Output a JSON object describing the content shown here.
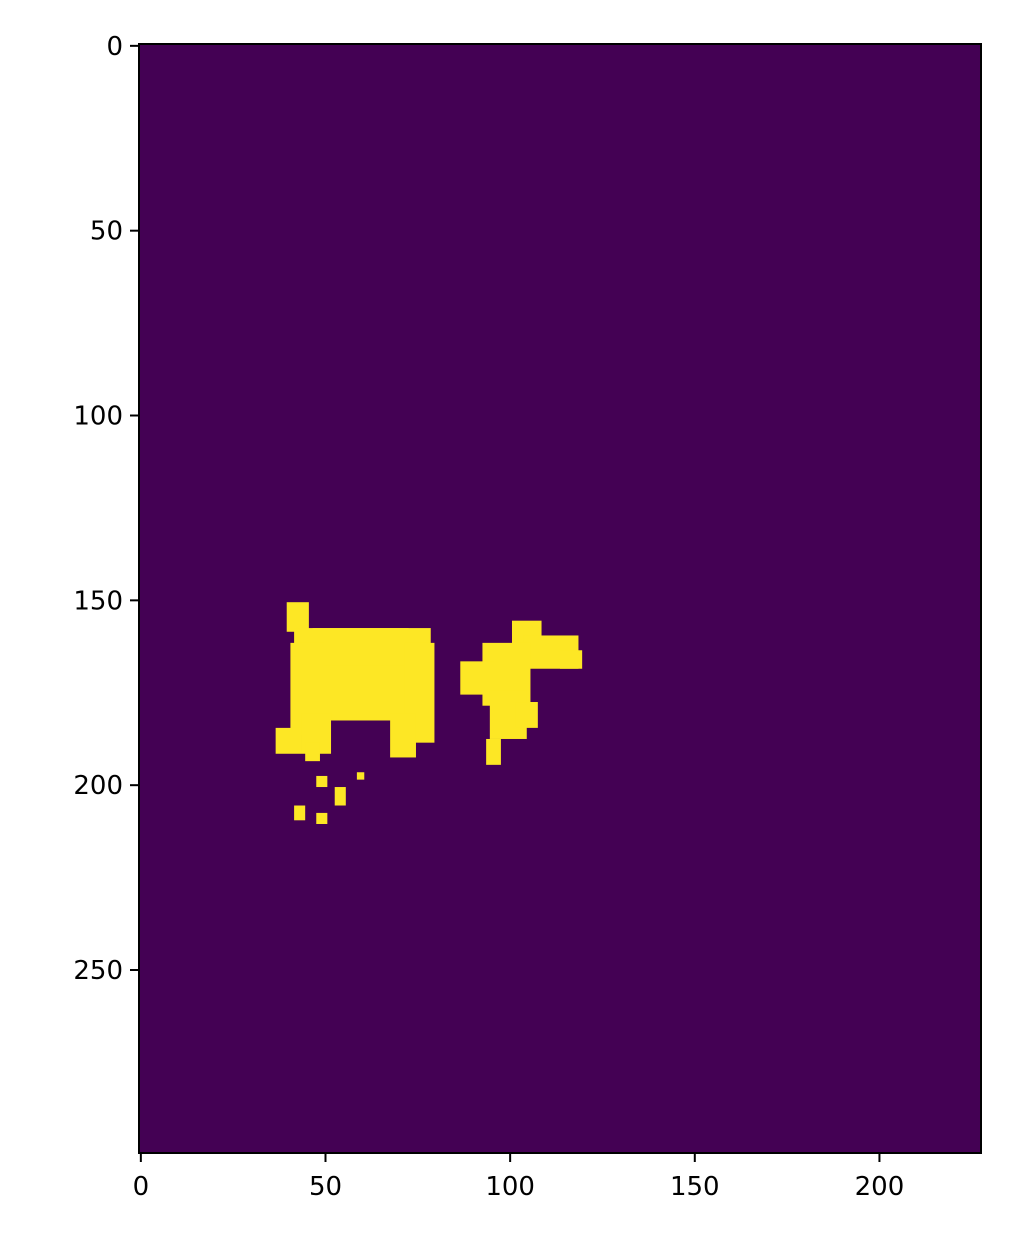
{
  "chart_data": {
    "type": "heatmap",
    "title": "",
    "xlabel": "",
    "ylabel": "",
    "image_size": {
      "width": 228,
      "height": 300
    },
    "xlim": [
      -0.5,
      227.5
    ],
    "ylim": [
      299.5,
      -0.5
    ],
    "x_ticks": [
      0,
      50,
      100,
      150,
      200
    ],
    "x_tick_labels": [
      "0",
      "50",
      "100",
      "150",
      "200"
    ],
    "y_ticks": [
      0,
      50,
      100,
      150,
      200,
      250
    ],
    "y_tick_labels": [
      "0",
      "50",
      "100",
      "150",
      "200",
      "250"
    ],
    "colormap": "viridis",
    "background_value": 0,
    "foreground_value": 1,
    "background_color": "#440154",
    "foreground_color": "#fde725",
    "grid": false,
    "legend": "none",
    "foreground_regions": [
      {
        "name": "left-blob-core",
        "x": [
          47,
          72
        ],
        "y": [
          158,
          180
        ]
      },
      {
        "name": "left-blob-top-nub",
        "x": [
          40,
          45
        ],
        "y": [
          151,
          158
        ]
      },
      {
        "name": "left-blob-upper-band",
        "x": [
          42,
          78
        ],
        "y": [
          158,
          168
        ]
      },
      {
        "name": "left-blob-waist",
        "x": [
          49,
          73
        ],
        "y": [
          168,
          182
        ]
      },
      {
        "name": "left-blob-left-lobe",
        "x": [
          41,
          49
        ],
        "y": [
          162,
          186
        ]
      },
      {
        "name": "left-blob-right-lobe",
        "x": [
          72,
          79
        ],
        "y": [
          162,
          188
        ]
      },
      {
        "name": "left-blob-bottom-left-leg",
        "x": [
          44,
          51
        ],
        "y": [
          181,
          191
        ]
      },
      {
        "name": "left-blob-bottom-right-leg",
        "x": [
          68,
          74
        ],
        "y": [
          181,
          192
        ]
      },
      {
        "name": "left-blob-small-dot",
        "x": [
          37,
          43
        ],
        "y": [
          185,
          191
        ]
      },
      {
        "name": "left-blob-small-dot-2",
        "x": [
          45,
          48
        ],
        "y": [
          189,
          193
        ]
      },
      {
        "name": "speck-1",
        "x": [
          48,
          50
        ],
        "y": [
          198,
          200
        ]
      },
      {
        "name": "speck-2",
        "x": [
          53,
          55
        ],
        "y": [
          201,
          205
        ]
      },
      {
        "name": "speck-3",
        "x": [
          42,
          44
        ],
        "y": [
          206,
          209
        ]
      },
      {
        "name": "speck-4",
        "x": [
          48,
          50
        ],
        "y": [
          208,
          210
        ]
      },
      {
        "name": "speck-5",
        "x": [
          59,
          60
        ],
        "y": [
          197,
          198
        ]
      },
      {
        "name": "right-blob-top",
        "x": [
          101,
          108
        ],
        "y": [
          156,
          162
        ]
      },
      {
        "name": "right-blob-arm",
        "x": [
          104,
          118
        ],
        "y": [
          160,
          168
        ]
      },
      {
        "name": "right-blob-body",
        "x": [
          93,
          105
        ],
        "y": [
          162,
          178
        ]
      },
      {
        "name": "right-blob-left-edge",
        "x": [
          87,
          95
        ],
        "y": [
          167,
          175
        ]
      },
      {
        "name": "right-blob-lower",
        "x": [
          95,
          104
        ],
        "y": [
          175,
          187
        ]
      },
      {
        "name": "right-blob-lower-right",
        "x": [
          102,
          107
        ],
        "y": [
          178,
          184
        ]
      },
      {
        "name": "right-blob-tail",
        "x": [
          94,
          97
        ],
        "y": [
          188,
          194
        ]
      },
      {
        "name": "right-blob-arm-tip",
        "x": [
          114,
          119
        ],
        "y": [
          164,
          168
        ]
      }
    ]
  }
}
